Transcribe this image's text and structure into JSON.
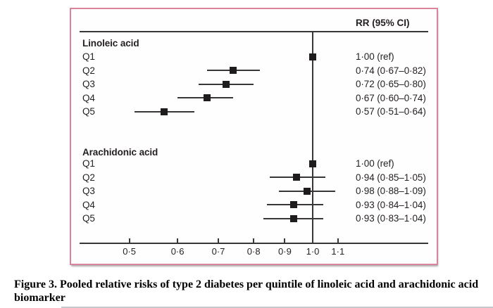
{
  "chart_data": {
    "type": "forest",
    "column_header": "RR (95% CI)",
    "x_axis": {
      "scale": "log",
      "tick_values": [
        0.5,
        0.6,
        0.7,
        0.8,
        0.9,
        1.0,
        1.1
      ],
      "tick_labels": [
        "0·5",
        "0·6",
        "0·7",
        "0·8",
        "0·9",
        "1·0",
        "1·1"
      ],
      "range": [
        0.45,
        1.2
      ],
      "reference_line": 1.0
    },
    "groups": [
      {
        "name": "Linoleic acid",
        "rows": [
          {
            "quintile": "Q1",
            "rr": 1.0,
            "ci_low": null,
            "ci_high": null,
            "label": "1·00 (ref)"
          },
          {
            "quintile": "Q2",
            "rr": 0.74,
            "ci_low": 0.67,
            "ci_high": 0.82,
            "label": "0·74 (0·67–0·82)"
          },
          {
            "quintile": "Q3",
            "rr": 0.72,
            "ci_low": 0.65,
            "ci_high": 0.8,
            "label": "0·72 (0·65–0·80)"
          },
          {
            "quintile": "Q4",
            "rr": 0.67,
            "ci_low": 0.6,
            "ci_high": 0.74,
            "label": "0·67 (0·60–0·74)"
          },
          {
            "quintile": "Q5",
            "rr": 0.57,
            "ci_low": 0.51,
            "ci_high": 0.64,
            "label": "0·57 (0·51–0·64)"
          }
        ]
      },
      {
        "name": "Arachidonic acid",
        "rows": [
          {
            "quintile": "Q1",
            "rr": 1.0,
            "ci_low": null,
            "ci_high": null,
            "label": "1·00 (ref)"
          },
          {
            "quintile": "Q2",
            "rr": 0.94,
            "ci_low": 0.85,
            "ci_high": 1.05,
            "label": "0·94 (0·85–1·05)"
          },
          {
            "quintile": "Q3",
            "rr": 0.98,
            "ci_low": 0.88,
            "ci_high": 1.09,
            "label": "0·98 (0·88–1·09)"
          },
          {
            "quintile": "Q4",
            "rr": 0.93,
            "ci_low": 0.84,
            "ci_high": 1.04,
            "label": "0·93 (0·84–1·04)"
          },
          {
            "quintile": "Q5",
            "rr": 0.93,
            "ci_low": 0.83,
            "ci_high": 1.04,
            "label": "0·93 (0·83–1·04)"
          }
        ]
      }
    ]
  },
  "caption": {
    "line1": "Figure 3. Pooled relative risks of type 2 diabetes per quintile of linoleic acid and arachidonic acid",
    "line2": "biomarker"
  },
  "colors": {
    "box_border": "#d9849b",
    "axis_line": "#39363a",
    "marker": "#1f1c1d",
    "text": "#231f20"
  }
}
